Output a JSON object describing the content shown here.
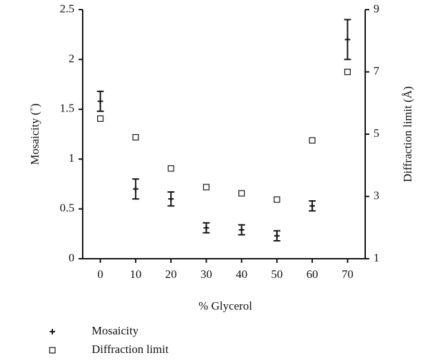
{
  "chart_data": {
    "type": "scatter",
    "x_label": "% Glycerol",
    "y_label": "Mosaicity (˚)",
    "y2_label": "Diffraction limit (Å)",
    "x": [
      0,
      10,
      20,
      30,
      40,
      50,
      60,
      70
    ],
    "xlim": [
      -5,
      75
    ],
    "xticks": [
      0,
      10,
      20,
      30,
      40,
      50,
      60,
      70
    ],
    "ylim": [
      0,
      2.5
    ],
    "yticks": [
      0,
      0.5,
      1,
      1.5,
      2,
      2.5
    ],
    "y2lim": [
      1,
      9
    ],
    "y2ticks": [
      1,
      3,
      5,
      7,
      9
    ],
    "legend": "below",
    "series": [
      {
        "name": "Mosaicity",
        "color": "#111111",
        "marker": "plus",
        "values": [
          1.58,
          0.7,
          0.6,
          0.31,
          0.29,
          0.23,
          0.53,
          2.2
        ],
        "errors": [
          0.1,
          0.1,
          0.07,
          0.05,
          0.05,
          0.05,
          0.05,
          0.2
        ]
      },
      {
        "name": "Diffraction limit",
        "color": "#111111",
        "marker": "square",
        "axis": "y2",
        "values": [
          5.5,
          4.9,
          3.9,
          3.3,
          3.1,
          2.9,
          4.8,
          7.0
        ]
      }
    ]
  }
}
